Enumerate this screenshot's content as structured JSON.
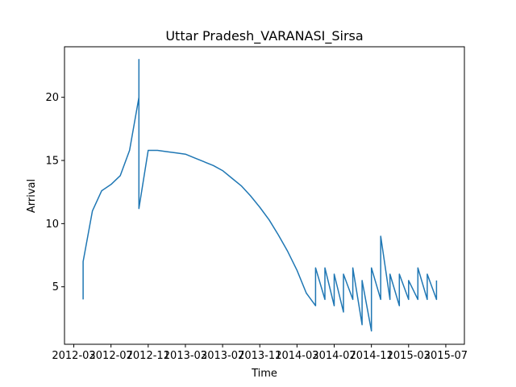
{
  "chart_data": {
    "type": "line",
    "title": "Uttar Pradesh_VARANASI_Sirsa",
    "x_label": "Time",
    "y_label": "Arrival",
    "xlim": [
      "2012-02",
      "2015-09"
    ],
    "xticks": [
      "2012-03",
      "2012-07",
      "2012-11",
      "2013-03",
      "2013-07",
      "2013-11",
      "2014-03",
      "2014-07",
      "2014-11",
      "2015-03",
      "2015-07"
    ],
    "ylim": [
      0.45,
      24.0
    ],
    "yticks": [
      5,
      10,
      15,
      20
    ],
    "x": [
      "2012-04",
      "2012-04",
      "2012-05",
      "2012-06",
      "2012-07",
      "2012-08",
      "2012-09",
      "2012-10",
      "2012-10",
      "2012-10",
      "2012-10",
      "2012-10",
      "2012-11",
      "2012-12",
      "2013-01",
      "2013-02",
      "2013-03",
      "2013-04",
      "2013-05",
      "2013-06",
      "2013-07",
      "2013-08",
      "2013-09",
      "2013-10",
      "2013-11",
      "2013-12",
      "2014-01",
      "2014-02",
      "2014-03",
      "2014-04",
      "2014-05",
      "2014-05",
      "2014-06",
      "2014-06",
      "2014-07",
      "2014-07",
      "2014-08",
      "2014-08",
      "2014-09",
      "2014-09",
      "2014-10",
      "2014-10",
      "2014-11",
      "2014-11",
      "2014-12",
      "2014-12",
      "2015-01",
      "2015-01",
      "2015-02",
      "2015-02",
      "2015-03",
      "2015-03",
      "2015-04",
      "2015-04",
      "2015-05",
      "2015-05",
      "2015-06",
      "2015-06"
    ],
    "series": [
      {
        "name": "Arrival",
        "color": "#1f77b4",
        "values": [
          4,
          7,
          11,
          12.6,
          13.1,
          13.8,
          15.8,
          20,
          23,
          11.5,
          19.4,
          11.2,
          15.8,
          15.8,
          15.7,
          15.6,
          15.5,
          15.2,
          14.9,
          14.6,
          14.2,
          13.6,
          13.0,
          12.2,
          11.3,
          10.3,
          9.1,
          7.8,
          6.3,
          4.5,
          3.5,
          6.5,
          4,
          6.5,
          3.5,
          6,
          3,
          6,
          4,
          6.5,
          2,
          5.5,
          1.5,
          6.5,
          4,
          9,
          4,
          6,
          3.5,
          6,
          4,
          5.5,
          4,
          6.5,
          4,
          6,
          4,
          5.5
        ]
      }
    ]
  }
}
